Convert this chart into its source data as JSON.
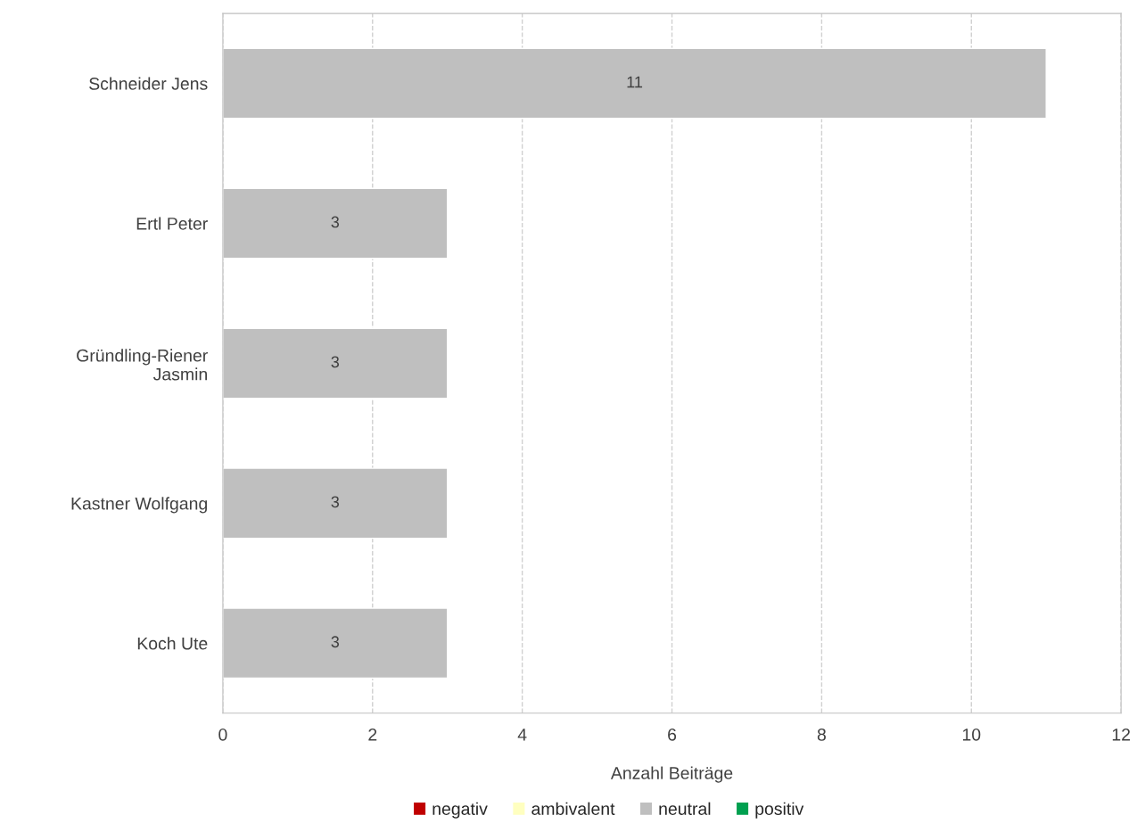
{
  "chart_data": {
    "type": "bar",
    "orientation": "horizontal",
    "xlabel": "Anzahl Beiträge",
    "categories": [
      "Schneider Jens",
      "Ertl Peter",
      "Gründling-Riener\nJasmin",
      "Kastner Wolfgang",
      "Koch Ute"
    ],
    "series": [
      {
        "name": "negativ",
        "color": "#c00000",
        "values": [
          null,
          null,
          null,
          null,
          null
        ]
      },
      {
        "name": "ambivalent",
        "color": "#ffffc0",
        "values": [
          null,
          null,
          null,
          null,
          null
        ]
      },
      {
        "name": "neutral",
        "color": "#bfbfbf",
        "values": [
          11,
          3,
          3,
          3,
          3
        ],
        "value_labels": [
          "11",
          "3",
          "3",
          "3",
          "3"
        ]
      },
      {
        "name": "positiv",
        "color": "#00a050",
        "values": [
          null,
          null,
          null,
          null,
          null
        ]
      }
    ],
    "xlim": [
      0,
      12
    ],
    "xticks": [
      0,
      2,
      4,
      6,
      8,
      10,
      12
    ],
    "grid": "x",
    "legend": "bottom"
  }
}
